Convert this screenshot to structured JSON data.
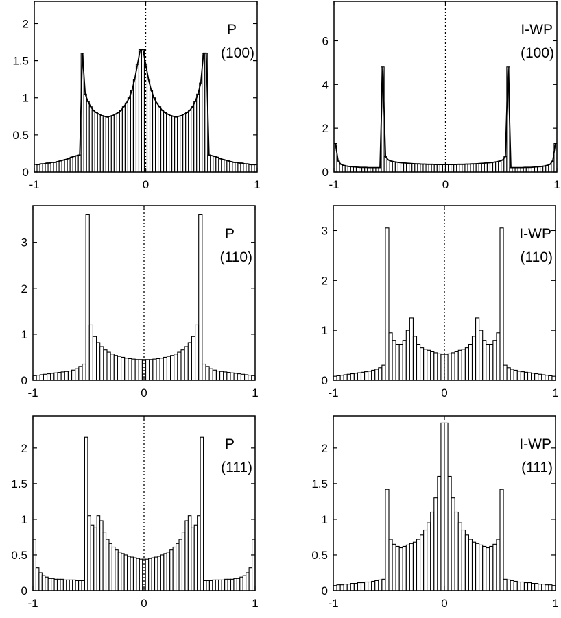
{
  "chart_data": [
    {
      "type": "bar",
      "title": "",
      "label_line1": "P",
      "label_line2": "(100)",
      "xlim": [
        -1,
        1
      ],
      "ylim": [
        0,
        2.3
      ],
      "xticks": [
        -1,
        0,
        1
      ],
      "xtick_labels": [
        "-1",
        "0",
        "1"
      ],
      "yticks": [
        0,
        0.5,
        1,
        1.5,
        2
      ],
      "ytick_labels": [
        "0",
        "0.5",
        "1",
        "1.5",
        "2"
      ],
      "zero_line": true,
      "fitted_curve": true,
      "values": [
        0.1,
        0.1,
        0.11,
        0.11,
        0.12,
        0.12,
        0.13,
        0.13,
        0.14,
        0.15,
        0.16,
        0.17,
        0.18,
        0.2,
        0.21,
        0.22,
        0.23,
        1.6,
        1.05,
        0.95,
        0.88,
        0.83,
        0.8,
        0.78,
        0.76,
        0.75,
        0.74,
        0.75,
        0.76,
        0.78,
        0.8,
        0.83,
        0.88,
        0.93,
        1.0,
        1.1,
        1.25,
        1.45,
        1.65,
        1.65,
        1.45,
        1.25,
        1.1,
        1.0,
        0.93,
        0.88,
        0.83,
        0.8,
        0.78,
        0.76,
        0.75,
        0.74,
        0.75,
        0.76,
        0.78,
        0.8,
        0.83,
        0.88,
        0.95,
        1.05,
        1.2,
        1.6,
        1.6,
        0.23,
        0.22,
        0.21,
        0.2,
        0.18,
        0.17,
        0.16,
        0.15,
        0.14,
        0.13,
        0.13,
        0.12,
        0.12,
        0.11,
        0.11,
        0.1,
        0.1,
        0.1
      ]
    },
    {
      "type": "bar",
      "title": "",
      "label_line1": "I-WP",
      "label_line2": "(100)",
      "xlim": [
        -1,
        1
      ],
      "ylim": [
        0,
        7.8
      ],
      "xticks": [
        -1,
        0,
        1
      ],
      "xtick_labels": [
        "-1",
        "0",
        "1"
      ],
      "yticks": [
        0,
        2,
        4,
        6
      ],
      "ytick_labels": [
        "0",
        "2",
        "4",
        "6"
      ],
      "zero_line": true,
      "fitted_curve": true,
      "values": [
        1.3,
        0.5,
        0.35,
        0.3,
        0.27,
        0.25,
        0.24,
        0.23,
        0.22,
        0.21,
        0.21,
        0.21,
        0.2,
        0.2,
        0.2,
        0.2,
        0.2,
        4.8,
        0.7,
        0.55,
        0.5,
        0.47,
        0.45,
        0.43,
        0.42,
        0.41,
        0.4,
        0.39,
        0.38,
        0.37,
        0.37,
        0.36,
        0.36,
        0.35,
        0.35,
        0.35,
        0.34,
        0.34,
        0.34,
        0.34,
        0.34,
        0.34,
        0.34,
        0.34,
        0.35,
        0.35,
        0.35,
        0.36,
        0.36,
        0.37,
        0.37,
        0.38,
        0.39,
        0.4,
        0.41,
        0.42,
        0.43,
        0.45,
        0.47,
        0.5,
        0.55,
        0.7,
        4.8,
        0.2,
        0.2,
        0.2,
        0.2,
        0.2,
        0.21,
        0.21,
        0.21,
        0.22,
        0.23,
        0.24,
        0.25,
        0.27,
        0.3,
        0.35,
        0.5,
        1.3
      ]
    },
    {
      "type": "bar",
      "title": "",
      "label_line1": "P",
      "label_line2": "(110)",
      "xlim": [
        -1,
        1
      ],
      "ylim": [
        0,
        3.8
      ],
      "xticks": [
        -1,
        0,
        1
      ],
      "xtick_labels": [
        "-1",
        "0",
        "1"
      ],
      "yticks": [
        0,
        1,
        2,
        3
      ],
      "ytick_labels": [
        "0",
        "1",
        "2",
        "3"
      ],
      "zero_line": true,
      "fitted_curve": false,
      "values": [
        0.1,
        0.11,
        0.12,
        0.13,
        0.14,
        0.15,
        0.16,
        0.17,
        0.18,
        0.19,
        0.2,
        0.22,
        0.25,
        0.3,
        0.35,
        3.6,
        1.2,
        0.95,
        0.82,
        0.73,
        0.66,
        0.61,
        0.57,
        0.54,
        0.52,
        0.5,
        0.48,
        0.47,
        0.46,
        0.45,
        0.45,
        0.45,
        0.45,
        0.45,
        0.46,
        0.47,
        0.48,
        0.5,
        0.52,
        0.54,
        0.57,
        0.61,
        0.66,
        0.73,
        0.82,
        0.95,
        1.2,
        3.6,
        0.35,
        0.3,
        0.25,
        0.22,
        0.2,
        0.19,
        0.18,
        0.17,
        0.16,
        0.15,
        0.14,
        0.13,
        0.12,
        0.11,
        0.1
      ]
    },
    {
      "type": "bar",
      "title": "",
      "label_line1": "I-WP",
      "label_line2": "(110)",
      "xlim": [
        -1,
        1
      ],
      "ylim": [
        0,
        3.5
      ],
      "xticks": [
        -1,
        0,
        1
      ],
      "xtick_labels": [
        "-1",
        "0",
        "1"
      ],
      "yticks": [
        0,
        1,
        2,
        3
      ],
      "ytick_labels": [
        "0",
        "1",
        "2",
        "3"
      ],
      "zero_line": true,
      "fitted_curve": false,
      "values": [
        0.08,
        0.09,
        0.1,
        0.11,
        0.12,
        0.13,
        0.14,
        0.15,
        0.16,
        0.17,
        0.18,
        0.2,
        0.22,
        0.25,
        0.3,
        3.05,
        0.95,
        0.8,
        0.72,
        0.72,
        0.8,
        1.0,
        1.25,
        0.88,
        0.72,
        0.65,
        0.62,
        0.6,
        0.57,
        0.55,
        0.53,
        0.52,
        0.52,
        0.53,
        0.55,
        0.57,
        0.6,
        0.62,
        0.65,
        0.72,
        0.88,
        1.25,
        1.0,
        0.8,
        0.72,
        0.72,
        0.8,
        0.95,
        3.05,
        0.3,
        0.25,
        0.22,
        0.2,
        0.18,
        0.17,
        0.16,
        0.15,
        0.14,
        0.13,
        0.12,
        0.11,
        0.1,
        0.09,
        0.08
      ]
    },
    {
      "type": "bar",
      "title": "",
      "label_line1": "P",
      "label_line2": "(111)",
      "xlim": [
        -1,
        1
      ],
      "ylim": [
        0,
        2.45
      ],
      "xticks": [
        -1,
        0,
        1
      ],
      "xtick_labels": [
        "-1",
        "0",
        "1"
      ],
      "yticks": [
        0,
        0.5,
        1,
        1.5,
        2
      ],
      "ytick_labels": [
        "0",
        "0.5",
        "1",
        "1.5",
        "2"
      ],
      "zero_line": true,
      "fitted_curve": false,
      "values": [
        0.72,
        0.32,
        0.25,
        0.21,
        0.19,
        0.17,
        0.17,
        0.16,
        0.16,
        0.16,
        0.15,
        0.15,
        0.15,
        0.15,
        0.14,
        0.14,
        0.14,
        2.15,
        1.05,
        0.92,
        0.88,
        1.05,
        0.98,
        0.82,
        0.72,
        0.66,
        0.61,
        0.57,
        0.54,
        0.52,
        0.5,
        0.48,
        0.47,
        0.46,
        0.45,
        0.44,
        0.44,
        0.44,
        0.45,
        0.46,
        0.47,
        0.48,
        0.5,
        0.52,
        0.54,
        0.57,
        0.61,
        0.66,
        0.72,
        0.82,
        0.98,
        1.05,
        0.88,
        0.92,
        1.05,
        2.15,
        0.14,
        0.14,
        0.14,
        0.15,
        0.15,
        0.15,
        0.15,
        0.16,
        0.16,
        0.16,
        0.17,
        0.17,
        0.19,
        0.21,
        0.25,
        0.32,
        0.72
      ]
    },
    {
      "type": "bar",
      "title": "",
      "label_line1": "I-WP",
      "label_line2": "(111)",
      "xlim": [
        -1,
        1
      ],
      "ylim": [
        0,
        2.45
      ],
      "xticks": [
        -1,
        0,
        1
      ],
      "xtick_labels": [
        "-1",
        "0",
        "1"
      ],
      "yticks": [
        0,
        0.5,
        1,
        1.5,
        2
      ],
      "ytick_labels": [
        "0",
        "0.5",
        "1",
        "1.5",
        "2"
      ],
      "zero_line": false,
      "fitted_curve": false,
      "values": [
        0.07,
        0.08,
        0.08,
        0.09,
        0.09,
        0.1,
        0.1,
        0.11,
        0.11,
        0.12,
        0.12,
        0.13,
        0.14,
        0.15,
        0.16,
        1.42,
        0.72,
        0.65,
        0.62,
        0.6,
        0.62,
        0.64,
        0.66,
        0.68,
        0.72,
        0.78,
        0.85,
        0.95,
        1.1,
        1.3,
        1.6,
        2.35,
        2.35,
        1.6,
        1.3,
        1.1,
        0.95,
        0.85,
        0.78,
        0.72,
        0.68,
        0.66,
        0.64,
        0.62,
        0.6,
        0.62,
        0.65,
        0.72,
        1.42,
        0.16,
        0.15,
        0.14,
        0.13,
        0.12,
        0.12,
        0.11,
        0.11,
        0.1,
        0.1,
        0.09,
        0.09,
        0.08,
        0.08,
        0.07
      ]
    }
  ]
}
